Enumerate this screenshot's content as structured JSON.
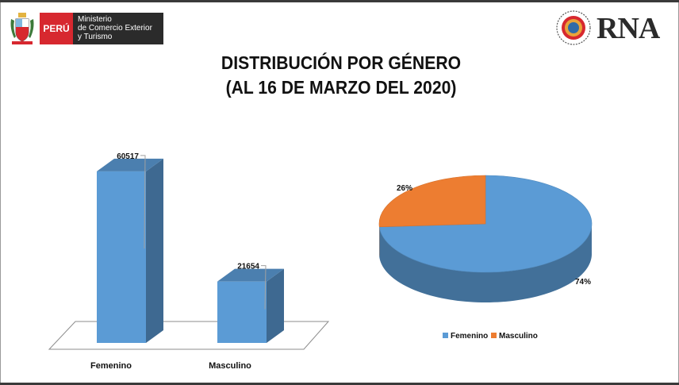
{
  "header": {
    "peru_label": "PERÚ",
    "ministry_lines": [
      "Ministerio",
      "de Comercio Exterior",
      "y Turismo"
    ],
    "rna_label": "RNA"
  },
  "title_line1": "DISTRIBUCIÓN POR GÉNERO",
  "title_line2": "(AL 16 DE MARZO DEL 2020)",
  "chart_data": [
    {
      "type": "bar",
      "categories": [
        "Femenino",
        "Masculino"
      ],
      "values": [
        60517,
        21654
      ],
      "data_labels": [
        "60517",
        "21654"
      ],
      "title": "",
      "xlabel": "",
      "ylabel": "",
      "ylim": [
        0,
        70000
      ],
      "grid": false,
      "style": "3d",
      "color": "#5b9bd5"
    },
    {
      "type": "pie",
      "categories": [
        "Femenino",
        "Masculino"
      ],
      "values": [
        74,
        26
      ],
      "data_labels": [
        "74%",
        "26%"
      ],
      "colors": [
        "#5b9bd5",
        "#ed7d31"
      ],
      "legend": "bottom",
      "style": "3d"
    }
  ]
}
